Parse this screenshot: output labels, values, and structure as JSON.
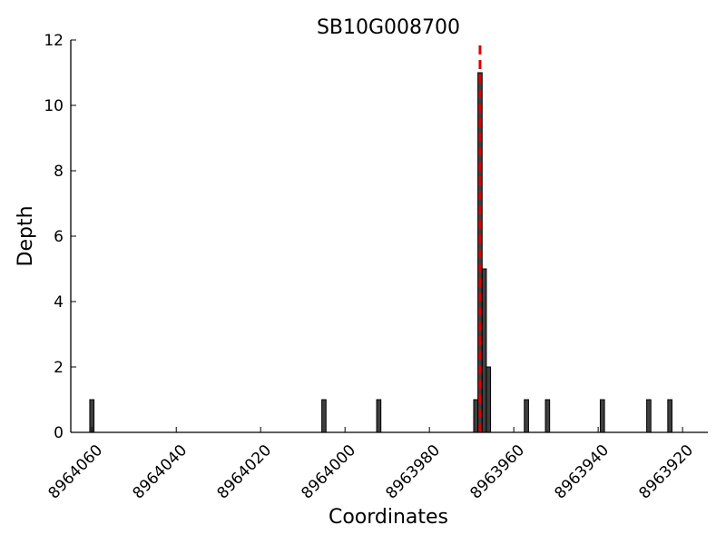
{
  "chart_data": {
    "type": "bar",
    "title": "SB10G008700",
    "xlabel": "Coordinates",
    "ylabel": "Depth",
    "x_reversed": true,
    "xlim": [
      8964065,
      8963914
    ],
    "ylim": [
      0,
      12
    ],
    "grid": false,
    "x_ticks": [
      8964060,
      8964040,
      8964020,
      8964000,
      8963980,
      8963960,
      8963940,
      8963920
    ],
    "y_ticks": [
      0,
      2,
      4,
      6,
      8,
      10,
      12
    ],
    "bar_color": "#3f3f3f",
    "marker_color": "#dd0000",
    "marker_x": 8963968,
    "series": [
      {
        "x": [
          8964060,
          8964005,
          8963992,
          8963969,
          8963968,
          8963967,
          8963966,
          8963957,
          8963952,
          8963939,
          8963928,
          8963923
        ],
        "values": [
          1,
          1,
          1,
          1,
          11,
          5,
          2,
          1,
          1,
          1,
          1,
          1
        ]
      }
    ]
  }
}
